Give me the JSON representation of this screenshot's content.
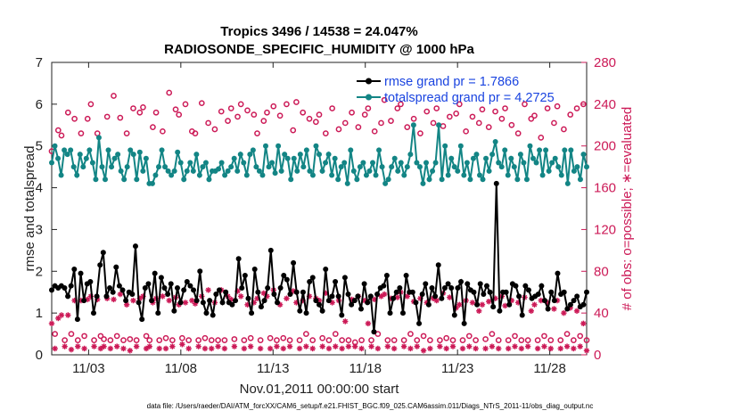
{
  "chart_data": {
    "type": "line",
    "title": "Tropics 3496 / 14538 = 24.047%",
    "subtitle": "RADIOSONDE_SPECIFIC_HUMIDITY @ 1000 hPa",
    "xlabel": "Nov.01,2011 00:00:00 start",
    "ylabel": "rmse and totalspread",
    "ylabel_right": "# of obs: o=possible; ∗=evaluated",
    "xlim": [
      1,
      30
    ],
    "ylim": [
      0,
      7
    ],
    "ylim_right": [
      0,
      280
    ],
    "x_ticks": [
      3,
      8,
      13,
      18,
      23,
      28
    ],
    "x_tick_labels": [
      "11/03",
      "11/08",
      "11/13",
      "11/18",
      "11/23",
      "11/28"
    ],
    "y_ticks": [
      0,
      1,
      2,
      3,
      4,
      5,
      6,
      7
    ],
    "y_ticks_right": [
      0,
      40,
      80,
      120,
      160,
      200,
      240,
      280
    ],
    "series": [
      {
        "name": "rmse grand pr = 1.7866",
        "color": "#000000",
        "axis": "left",
        "marker": "filled-circle",
        "values": [
          1.55,
          1.65,
          1.6,
          1.65,
          1.6,
          1.4,
          1.65,
          2.05,
          0.85,
          1.95,
          1.3,
          1.7,
          1.75,
          1.0,
          1.4,
          2.15,
          2.45,
          1.4,
          1.6,
          1.5,
          2.1,
          1.65,
          1.55,
          1.3,
          1.5,
          1.45,
          2.6,
          1.25,
          0.85,
          1.6,
          1.7,
          1.3,
          1.95,
          1.0,
          1.85,
          1.6,
          1.45,
          1.7,
          1.05,
          1.6,
          1.25,
          1.55,
          1.75,
          1.65,
          1.55,
          1.3,
          2.0,
          1.25,
          1.0,
          1.3,
          0.95,
          1.45,
          1.55,
          1.25,
          1.5,
          1.25,
          1.2,
          1.3,
          2.3,
          1.6,
          1.9,
          1.35,
          1.0,
          2.05,
          1.5,
          1.15,
          1.3,
          1.6,
          2.5,
          1.45,
          1.25,
          1.6,
          1.9,
          1.8,
          1.45,
          2.2,
          1.5,
          1.05,
          1.5,
          1.0,
          1.75,
          1.85,
          1.3,
          1.2,
          1.05,
          2.05,
          1.3,
          1.4,
          1.75,
          1.4,
          0.95,
          1.85,
          1.45,
          1.2,
          1.3,
          1.4,
          1.1,
          1.7,
          1.25,
          1.4,
          0.55,
          1.45,
          1.6,
          1.65,
          1.9,
          1.0,
          1.35,
          1.5,
          1.6,
          1.0,
          1.9,
          1.5,
          1.5,
          1.25,
          0.75,
          1.45,
          1.7,
          1.2,
          1.6,
          1.4,
          2.15,
          1.35,
          1.6,
          1.7,
          1.6,
          0.95,
          1.6,
          1.75,
          0.75,
          1.7,
          1.55,
          1.5,
          1.2,
          1.7,
          1.45,
          1.65,
          1.5,
          1.15,
          4.1,
          1.05,
          1.5,
          1.5,
          1.2,
          1.7,
          1.65,
          1.4,
          0.95,
          1.65,
          1.55,
          1.35,
          1.4,
          1.45,
          1.65,
          1.3,
          1.1,
          1.5,
          1.3,
          1.95,
          1.45,
          1.5,
          1.1,
          1.2,
          1.3,
          1.4,
          1.15,
          1.2,
          1.5
        ]
      },
      {
        "name": "totalspread grand pr = 4.2725",
        "color": "#138585",
        "axis": "left",
        "marker": "filled-circle",
        "values": [
          4.6,
          5.0,
          4.7,
          4.3,
          4.9,
          4.8,
          4.9,
          4.5,
          4.3,
          4.8,
          4.5,
          4.7,
          4.9,
          4.6,
          4.2,
          5.2,
          4.5,
          4.2,
          4.9,
          4.5,
          4.7,
          4.8,
          4.4,
          4.2,
          4.5,
          4.9,
          4.8,
          4.2,
          4.85,
          4.4,
          4.7,
          4.1,
          4.1,
          4.3,
          4.5,
          4.9,
          4.5,
          4.4,
          4.3,
          4.4,
          4.85,
          4.6,
          4.2,
          4.4,
          4.6,
          4.4,
          4.8,
          4.3,
          4.5,
          4.6,
          4.2,
          4.4,
          4.4,
          4.45,
          4.6,
          4.3,
          4.4,
          4.5,
          4.7,
          4.4,
          4.8,
          4.6,
          4.3,
          4.8,
          4.9,
          4.5,
          4.4,
          4.3,
          5.0,
          4.5,
          4.6,
          4.35,
          5.0,
          4.4,
          4.8,
          4.7,
          4.2,
          4.7,
          4.4,
          4.8,
          4.5,
          4.9,
          4.4,
          4.3,
          5.0,
          4.8,
          4.4,
          4.6,
          4.8,
          4.3,
          4.7,
          4.2,
          4.5,
          4.6,
          4.1,
          4.9,
          4.4,
          4.2,
          4.5,
          4.6,
          4.3,
          4.4,
          4.6,
          4.3,
          4.9,
          4.5,
          4.1,
          4.2,
          4.5,
          4.7,
          4.4,
          4.6,
          4.3,
          4.5,
          4.8,
          5.5,
          4.6,
          4.5,
          4.1,
          4.6,
          4.2,
          4.4,
          4.6,
          5.5,
          4.2,
          5.0,
          4.3,
          4.7,
          4.5,
          4.4,
          5.0,
          4.3,
          4.6,
          4.2,
          4.7,
          4.8,
          4.3,
          4.2,
          4.7,
          4.4,
          4.8,
          5.1,
          4.6,
          4.5,
          4.9,
          4.3,
          4.7,
          4.5,
          4.2,
          4.8,
          4.6,
          4.2,
          5.0,
          4.7,
          4.6,
          4.9,
          4.3,
          4.9,
          4.4,
          4.6,
          4.7,
          4.5,
          4.3,
          4.9,
          4.1,
          4.9,
          4.4,
          4.5,
          4.2,
          4.8,
          4.5
        ]
      }
    ],
    "obs_possible": {
      "name": "possible",
      "color": "#cc1a57",
      "axis": "right",
      "marker": "open-circle",
      "values": [
        195,
        20,
        215,
        210,
        14,
        232,
        20,
        226,
        14,
        212,
        18,
        226,
        240,
        14,
        212,
        18,
        15,
        228,
        14,
        248,
        18,
        227,
        14,
        212,
        15,
        236,
        14,
        232,
        237,
        18,
        14,
        218,
        232,
        14,
        214,
        16,
        251,
        14,
        235,
        230,
        16,
        240,
        14,
        214,
        212,
        14,
        241,
        16,
        222,
        14,
        216,
        14,
        233,
        14,
        224,
        236,
        15,
        228,
        240,
        14,
        234,
        16,
        230,
        212,
        14,
        224,
        232,
        16,
        238,
        14,
        229,
        16,
        240,
        14,
        215,
        242,
        14,
        232,
        20,
        226,
        14,
        223,
        230,
        16,
        212,
        14,
        236,
        20,
        216,
        14,
        222,
        14,
        232,
        12,
        218,
        14,
        230,
        236,
        14,
        214,
        20,
        222,
        244,
        14,
        224,
        14,
        236,
        240,
        14,
        218,
        20,
        226,
        14,
        212,
        18,
        233,
        14,
        222,
        236,
        14,
        219,
        16,
        228,
        14,
        231,
        240,
        14,
        214,
        18,
        228,
        14,
        222,
        235,
        15,
        218,
        20,
        233,
        14,
        226,
        236,
        14,
        220,
        18,
        212,
        14,
        240,
        14,
        226,
        229,
        14,
        208,
        18,
        236,
        14,
        222,
        238,
        14,
        216,
        20,
        230,
        14,
        236,
        18,
        240,
        14
      ]
    },
    "obs_evaluated": {
      "name": "evaluated",
      "color": "#cc1a57",
      "axis": "right",
      "marker": "asterisk",
      "values": [
        30,
        6,
        35,
        38,
        8,
        38,
        5,
        52,
        8,
        52,
        6,
        53,
        56,
        8,
        53,
        6,
        8,
        54,
        6,
        53,
        8,
        58,
        6,
        48,
        4,
        52,
        8,
        54,
        56,
        6,
        8,
        50,
        54,
        6,
        56,
        6,
        52,
        8,
        55,
        48,
        10,
        50,
        6,
        52,
        49,
        8,
        56,
        6,
        62,
        6,
        50,
        8,
        62,
        6,
        56,
        53,
        8,
        61,
        56,
        6,
        48,
        8,
        50,
        54,
        6,
        59,
        56,
        6,
        62,
        8,
        48,
        6,
        54,
        8,
        61,
        50,
        6,
        52,
        8,
        56,
        6,
        54,
        52,
        8,
        59,
        6,
        50,
        8,
        52,
        6,
        32,
        8,
        53,
        8,
        56,
        6,
        52,
        30,
        8,
        53,
        6,
        56,
        58,
        8,
        54,
        6,
        55,
        60,
        8,
        56,
        6,
        51,
        8,
        54,
        4,
        50,
        6,
        54,
        52,
        8,
        59,
        6,
        55,
        8,
        45,
        48,
        6,
        52,
        8,
        50,
        6,
        42,
        48,
        6,
        51,
        8,
        54,
        6,
        56,
        47,
        6,
        52,
        8,
        50,
        6,
        55,
        8,
        42,
        48,
        6,
        52,
        8,
        50,
        6,
        44,
        52,
        6,
        40,
        8,
        45,
        6,
        42,
        8,
        30,
        4
      ]
    }
  },
  "legend": {
    "rmse_label": "rmse grand pr = 1.7866",
    "spread_label": "totalspread grand pr = 4.2725"
  },
  "footer_text": "data file: /Users/raeder/DAI/ATM_forcXX/CAM6_setup/f.e21.FHIST_BGC.f09_025.CAM6assim.011/Diags_NTrS_2011-11/obs_diag_output.nc"
}
